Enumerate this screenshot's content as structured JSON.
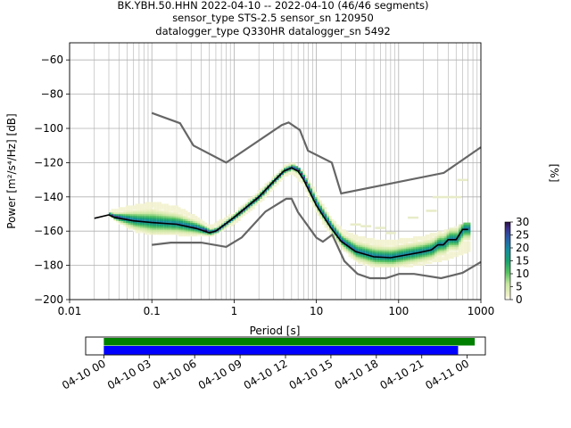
{
  "title_lines": [
    "BK.YBH.50.HHN   2022-04-10 -- 2022-04-10  (46/46 segments)",
    "sensor_type STS-2.5 sensor_sn 120950",
    "datalogger_type Q330HR datalogger_sn 5492"
  ],
  "chart_data": [
    {
      "type": "heatmap",
      "xlabel": "Period [s]",
      "ylabel": "Power [m²/s⁴/Hz] [dB]",
      "xscale": "log",
      "xlim": [
        0.01,
        1000
      ],
      "ylim": [
        -200,
        -50
      ],
      "xticks": [
        0.01,
        0.1,
        1,
        10,
        100,
        1000
      ],
      "xtick_labels": [
        "0.01",
        "0.1",
        "1",
        "10",
        "100",
        "1000"
      ],
      "yticks": [
        -200,
        -180,
        -160,
        -140,
        -120,
        -100,
        -80,
        -60
      ],
      "ytick_labels": [
        "−200",
        "−180",
        "−160",
        "−140",
        "−120",
        "−100",
        "−80",
        "−60"
      ],
      "grid": true,
      "colorbar": {
        "label": "[%]",
        "min": 0,
        "max": 30,
        "ticks": [
          0,
          5,
          10,
          15,
          20,
          25,
          30
        ],
        "tick_labels": [
          "0",
          "5",
          "10",
          "15",
          "20",
          "25",
          "30"
        ],
        "colormap": "pqlx"
      },
      "noise_model_high": [
        [
          0.1,
          -91
        ],
        [
          0.22,
          -97
        ],
        [
          0.32,
          -110
        ],
        [
          0.8,
          -120
        ],
        [
          3.8,
          -98
        ],
        [
          4.6,
          -96.5
        ],
        [
          6.3,
          -101
        ],
        [
          7.9,
          -113
        ],
        [
          15.4,
          -120
        ],
        [
          20,
          -138
        ],
        [
          354,
          -126
        ],
        [
          1000,
          -111
        ]
      ],
      "noise_model_low": [
        [
          0.1,
          -168
        ],
        [
          0.17,
          -166.7
        ],
        [
          0.4,
          -166.7
        ],
        [
          0.8,
          -169.2
        ],
        [
          1.24,
          -163.7
        ],
        [
          2.4,
          -148.6
        ],
        [
          4.3,
          -141.1
        ],
        [
          5,
          -141.1
        ],
        [
          6,
          -149
        ],
        [
          10,
          -163.8
        ],
        [
          12,
          -166.2
        ],
        [
          15.6,
          -162.1
        ],
        [
          21.9,
          -177.5
        ],
        [
          31.6,
          -185
        ],
        [
          45,
          -187.5
        ],
        [
          70,
          -187.5
        ],
        [
          101,
          -185
        ],
        [
          154,
          -185
        ],
        [
          328,
          -187.5
        ],
        [
          600,
          -184.4
        ],
        [
          1000,
          -178
        ]
      ],
      "mode_curve": [
        [
          0.02,
          -152.5
        ],
        [
          0.03,
          -150.5
        ],
        [
          0.035,
          -152
        ],
        [
          0.06,
          -154
        ],
        [
          0.1,
          -155
        ],
        [
          0.2,
          -156
        ],
        [
          0.35,
          -158.5
        ],
        [
          0.5,
          -161
        ],
        [
          0.6,
          -160
        ],
        [
          1,
          -152
        ],
        [
          2,
          -140
        ],
        [
          3,
          -131
        ],
        [
          4,
          -125
        ],
        [
          5,
          -123
        ],
        [
          6,
          -125
        ],
        [
          7,
          -130
        ],
        [
          10,
          -145
        ],
        [
          15,
          -158
        ],
        [
          20,
          -166
        ],
        [
          30,
          -172
        ],
        [
          50,
          -175
        ],
        [
          80,
          -175.5
        ],
        [
          120,
          -174
        ],
        [
          180,
          -172.5
        ],
        [
          250,
          -171
        ],
        [
          300,
          -168
        ],
        [
          350,
          -168
        ],
        [
          400,
          -165
        ],
        [
          500,
          -165
        ],
        [
          600,
          -159
        ],
        [
          700,
          -159
        ]
      ],
      "density_band": {
        "upper": [
          [
            0.03,
            -149
          ],
          [
            0.06,
            -146
          ],
          [
            0.1,
            -144
          ],
          [
            0.2,
            -147
          ],
          [
            0.35,
            -153
          ],
          [
            0.5,
            -158
          ],
          [
            1,
            -150
          ],
          [
            2,
            -137
          ],
          [
            4,
            -123
          ],
          [
            5,
            -121
          ],
          [
            7,
            -127
          ],
          [
            10,
            -140
          ],
          [
            15,
            -154
          ],
          [
            20,
            -160
          ],
          [
            30,
            -164
          ],
          [
            50,
            -166
          ],
          [
            100,
            -166
          ],
          [
            200,
            -164
          ],
          [
            400,
            -160
          ],
          [
            700,
            -156
          ]
        ],
        "lower": [
          [
            0.03,
            -152
          ],
          [
            0.06,
            -160
          ],
          [
            0.1,
            -162
          ],
          [
            0.2,
            -162
          ],
          [
            0.35,
            -163
          ],
          [
            0.5,
            -163
          ],
          [
            1,
            -155
          ],
          [
            2,
            -143
          ],
          [
            4,
            -128
          ],
          [
            5,
            -126
          ],
          [
            7,
            -134
          ],
          [
            10,
            -150
          ],
          [
            15,
            -163
          ],
          [
            20,
            -170
          ],
          [
            30,
            -178
          ],
          [
            50,
            -181
          ],
          [
            100,
            -181
          ],
          [
            200,
            -179
          ],
          [
            400,
            -176
          ],
          [
            700,
            -172
          ]
        ],
        "max_percent": 30
      },
      "faint_outliers": [
        [
          30,
          -156
        ],
        [
          40,
          -157
        ],
        [
          60,
          -158
        ],
        [
          80,
          -161
        ],
        [
          150,
          -152
        ],
        [
          250,
          -148
        ],
        [
          300,
          -140
        ],
        [
          400,
          -140
        ],
        [
          500,
          -140
        ],
        [
          600,
          -130
        ]
      ]
    },
    {
      "type": "timeline",
      "xtick_labels": [
        "04-10 00",
        "04-10 03",
        "04-10 06",
        "04-10 09",
        "04-10 12",
        "04-10 15",
        "04-10 18",
        "04-10 21",
        "04-11 00"
      ],
      "xlim_hours": [
        -1.2,
        25.2
      ],
      "bars": [
        {
          "color": "#008000",
          "start_hour": 0,
          "end_hour": 24.5
        },
        {
          "color": "#0000ff",
          "start_hour": 0,
          "end_hour": 23.4
        }
      ]
    }
  ],
  "colors": {
    "noise_model": "#666666",
    "mode_curve": "#000000",
    "grid": "#b0b0b0",
    "timeline_green": "#008000",
    "timeline_blue": "#0000ff"
  }
}
